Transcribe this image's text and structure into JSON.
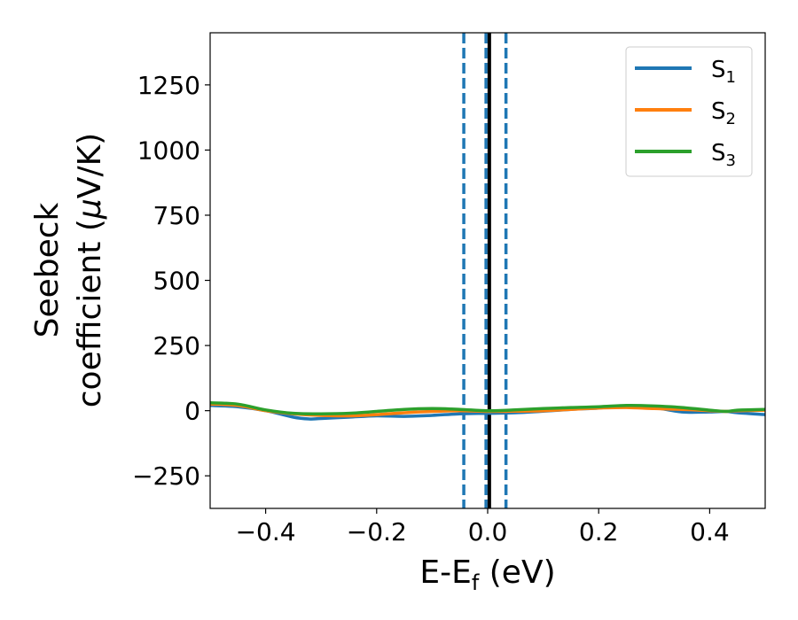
{
  "chart_data": {
    "type": "line",
    "title": "",
    "xlabel": {
      "main": "E-E",
      "sub": "f",
      "suffix": " (eV)"
    },
    "ylabel": {
      "line1": "Seebeck",
      "line2_prefix": "coefficient  (",
      "line2_mu": "μ",
      "line2_suffix": "V/K)"
    },
    "xlim": [
      -0.5,
      0.5
    ],
    "ylim": [
      -375,
      1450
    ],
    "xticks": [
      -0.4,
      -0.2,
      0.0,
      0.2,
      0.4
    ],
    "xtick_labels": [
      "−0.4",
      "−0.2",
      "0.0",
      "0.2",
      "0.4"
    ],
    "yticks": [
      -250,
      0,
      250,
      500,
      750,
      1000,
      1250
    ],
    "ytick_labels": [
      "−250",
      "0",
      "250",
      "500",
      "750",
      "1000",
      "1250"
    ],
    "grid": false,
    "legend_position": "top-right",
    "vertical_lines": [
      {
        "x": -0.043,
        "style": "dashed",
        "color": "#1f77b4"
      },
      {
        "x": -0.003,
        "style": "dashed",
        "color": "#1f77b4"
      },
      {
        "x": 0.003,
        "style": "solid",
        "color": "#000000"
      },
      {
        "x": 0.033,
        "style": "dashed",
        "color": "#1f77b4"
      }
    ],
    "series": [
      {
        "name": "S",
        "sub": "1",
        "color": "#1f77b4",
        "x": [
          -0.5,
          -0.45,
          -0.4,
          -0.35,
          -0.32,
          -0.3,
          -0.25,
          -0.2,
          -0.15,
          -0.1,
          -0.05,
          0.0,
          0.05,
          0.1,
          0.15,
          0.2,
          0.25,
          0.3,
          0.35,
          0.4,
          0.43,
          0.45,
          0.5
        ],
        "y": [
          20,
          15,
          0,
          -25,
          -32,
          -30,
          -25,
          -20,
          -22,
          -18,
          -12,
          -10,
          -8,
          -2,
          5,
          10,
          18,
          12,
          -5,
          -5,
          -3,
          -8,
          -15
        ]
      },
      {
        "name": "S",
        "sub": "2",
        "color": "#ff7f0e",
        "x": [
          -0.5,
          -0.45,
          -0.4,
          -0.35,
          -0.3,
          -0.25,
          -0.2,
          -0.15,
          -0.1,
          -0.05,
          0.0,
          0.05,
          0.1,
          0.15,
          0.2,
          0.25,
          0.3,
          0.35,
          0.4,
          0.43,
          0.45,
          0.5
        ],
        "y": [
          25,
          20,
          0,
          -12,
          -18,
          -20,
          -15,
          -8,
          -3,
          0,
          -3,
          -2,
          0,
          5,
          10,
          12,
          8,
          5,
          0,
          -3,
          0,
          2
        ]
      },
      {
        "name": "S",
        "sub": "3",
        "color": "#2ca02c",
        "x": [
          -0.5,
          -0.45,
          -0.4,
          -0.35,
          -0.3,
          -0.25,
          -0.2,
          -0.15,
          -0.1,
          -0.05,
          0.0,
          0.05,
          0.1,
          0.15,
          0.2,
          0.25,
          0.3,
          0.35,
          0.4,
          0.43,
          0.45,
          0.5
        ],
        "y": [
          30,
          25,
          3,
          -10,
          -12,
          -10,
          -3,
          5,
          8,
          5,
          0,
          3,
          8,
          12,
          15,
          20,
          18,
          12,
          2,
          -3,
          2,
          5
        ]
      }
    ]
  }
}
